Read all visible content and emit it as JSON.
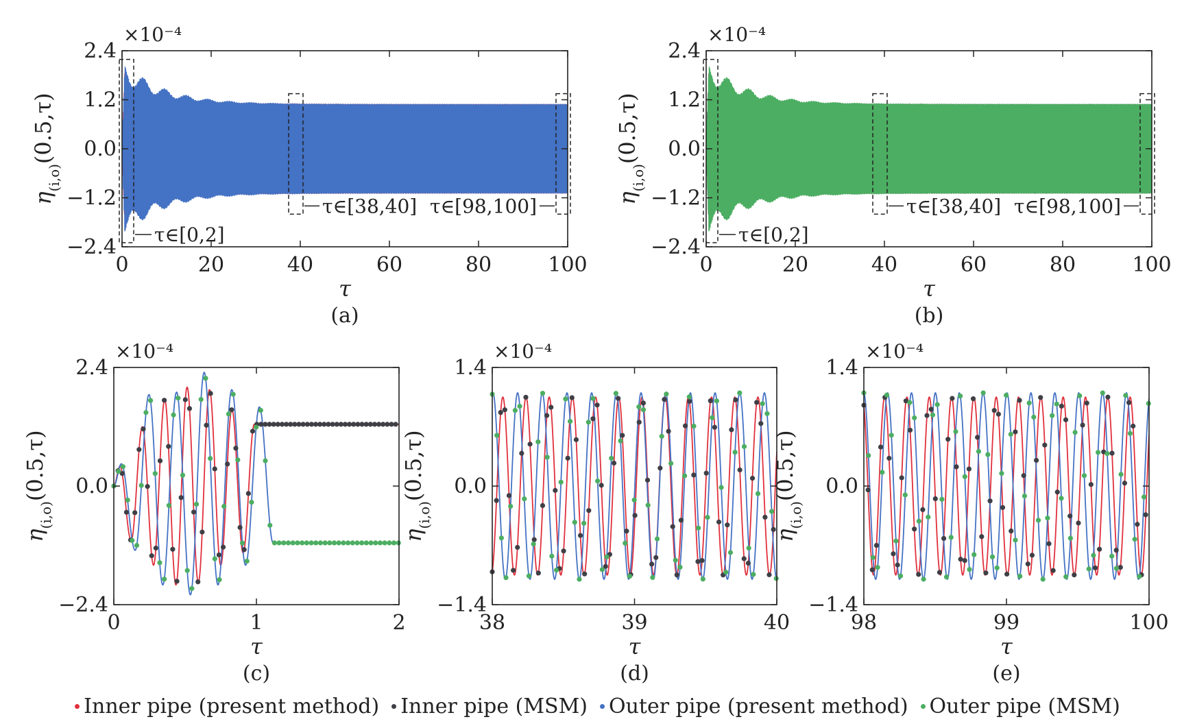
{
  "colors": {
    "inner_present": "#e0303c",
    "inner_msm": "#3f3f46",
    "outer_present": "#4472c4",
    "outer_msm": "#4cae62",
    "axis": "#222222"
  },
  "legend": [
    {
      "label": "Inner pipe (present method)",
      "color": "#e0303c"
    },
    {
      "label": "Inner pipe (MSM)",
      "color": "#3f3f46"
    },
    {
      "label": "Outer pipe (present method)",
      "color": "#4472c4"
    },
    {
      "label": "Outer pipe (MSM)",
      "color": "#4cae62"
    }
  ],
  "chart_data": [
    {
      "panel": "(a)",
      "type": "line",
      "exponent_label": "×10⁻⁴",
      "ylabel": "η(i,o)(0.5,τ)",
      "xlabel": "τ",
      "xlim": [
        0,
        100
      ],
      "ylim": [
        -2.4,
        2.4
      ],
      "xticks": [
        "0",
        "20",
        "40",
        "60",
        "80",
        "100"
      ],
      "yticks": [
        "−2.4",
        "−1.2",
        "0.0",
        "1.2",
        "2.4"
      ],
      "front_series": "outer_present",
      "series": [
        {
          "key": "inner_present",
          "envelope_peak": 2.0,
          "steady_amplitude": 1.1,
          "frequency": 6.3,
          "phase": 3.14
        },
        {
          "key": "outer_present",
          "envelope_peak": 2.2,
          "steady_amplitude": 1.1,
          "frequency": 6.3,
          "phase": 0
        }
      ],
      "annotations": [
        {
          "label": "τ∈[0,2]",
          "range": [
            0,
            2
          ]
        },
        {
          "label": "τ∈[38,40]",
          "range": [
            38,
            40
          ]
        },
        {
          "label": "τ∈[98,100]",
          "range": [
            98,
            100
          ]
        }
      ]
    },
    {
      "panel": "(b)",
      "type": "line",
      "exponent_label": "×10⁻⁴",
      "ylabel": "η(i,o)(0.5,τ)",
      "xlabel": "τ",
      "xlim": [
        0,
        100
      ],
      "ylim": [
        -2.4,
        2.4
      ],
      "xticks": [
        "0",
        "20",
        "40",
        "60",
        "80",
        "100"
      ],
      "yticks": [
        "−2.4",
        "−1.2",
        "0.0",
        "1.2",
        "2.4"
      ],
      "front_series": "outer_msm",
      "series": [
        {
          "key": "inner_msm",
          "envelope_peak": 2.0,
          "steady_amplitude": 1.1,
          "frequency": 6.3,
          "phase": 3.14
        },
        {
          "key": "outer_msm",
          "envelope_peak": 2.2,
          "steady_amplitude": 1.1,
          "frequency": 6.3,
          "phase": 0
        }
      ],
      "annotations": [
        {
          "label": "τ∈[0,2]",
          "range": [
            0,
            2
          ]
        },
        {
          "label": "τ∈[38,40]",
          "range": [
            38,
            40
          ]
        },
        {
          "label": "τ∈[98,100]",
          "range": [
            98,
            100
          ]
        }
      ]
    },
    {
      "panel": "(c)",
      "type": "line",
      "exponent_label": "×10⁻⁴",
      "ylabel": "η(i,o)(0.5,τ)",
      "xlabel": "τ",
      "xlim": [
        0,
        2
      ],
      "ylim": [
        -2.4,
        2.4
      ],
      "xticks": [
        "0",
        "1",
        "2"
      ],
      "yticks": [
        "−2.4",
        "0.0",
        "2.4"
      ],
      "inner_period": 0.157,
      "outer_period": 0.1935,
      "inner_peak_values": [
        0.4,
        -1.1,
        1.2,
        -1.6,
        1.75,
        -2.0,
        2.0,
        -1.95,
        1.95,
        -1.6,
        1.55,
        -1.35,
        1.25
      ],
      "outer_peak_values": [
        0.45,
        -1.3,
        1.85,
        -2.0,
        1.9,
        -2.2,
        2.3,
        -2.0,
        1.95,
        -1.6,
        1.6,
        -1.15
      ],
      "inner_marker_step": 0.0295,
      "outer_marker_step": 0.0322
    },
    {
      "panel": "(d)",
      "type": "line",
      "exponent_label": "×10⁻⁴",
      "ylabel": "η(i,o)(0.5,τ)",
      "xlabel": "τ",
      "xlim": [
        38,
        40
      ],
      "ylim": [
        -1.4,
        1.4
      ],
      "xticks": [
        "38",
        "39",
        "40"
      ],
      "yticks": [
        "−1.4",
        "0.0",
        "1.4"
      ],
      "inner_amplitude": 1.05,
      "inner_period": 0.163,
      "inner_phase": -1.3,
      "outer_amplitude": 1.1,
      "outer_period": 0.1735,
      "outer_phase": 1.4,
      "inner_marker_step": 0.0295,
      "outer_marker_step": 0.0322
    },
    {
      "panel": "(e)",
      "type": "line",
      "exponent_label": "×10⁻⁴",
      "ylabel": "η(i,o)(0.5,τ)",
      "xlabel": "τ",
      "xlim": [
        98,
        100
      ],
      "ylim": [
        -1.4,
        1.4
      ],
      "xticks": [
        "98",
        "99",
        "100"
      ],
      "yticks": [
        "−1.4",
        "0.0",
        "1.4"
      ],
      "inner_amplitude": 1.05,
      "inner_period": 0.1565,
      "inner_phase": 2.0,
      "outer_amplitude": 1.1,
      "outer_period": 0.1675,
      "outer_phase": 1.6,
      "inner_marker_step": 0.0295,
      "outer_marker_step": 0.0322
    }
  ]
}
